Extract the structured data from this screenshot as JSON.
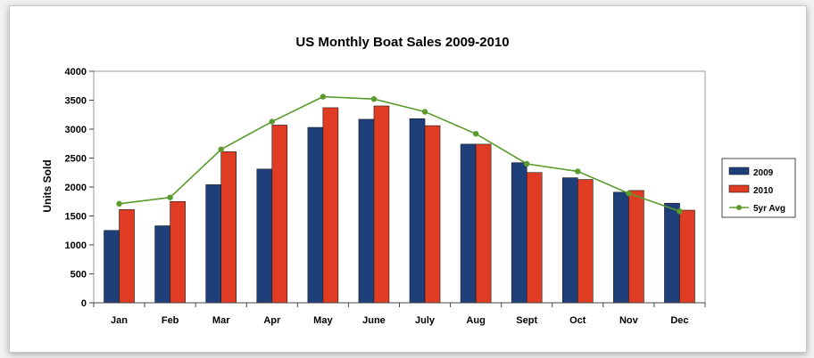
{
  "chart_data": {
    "type": "bar",
    "title": "US Monthly Boat Sales 2009-2010",
    "xlabel": "",
    "ylabel": "Units Sold",
    "ylim": [
      0,
      4000
    ],
    "yticks": [
      0,
      500,
      1000,
      1500,
      2000,
      2500,
      3000,
      3500,
      4000
    ],
    "categories": [
      "Jan",
      "Feb",
      "Mar",
      "Apr",
      "May",
      "June",
      "July",
      "Aug",
      "Sept",
      "Oct",
      "Nov",
      "Dec"
    ],
    "series": [
      {
        "name": "2009",
        "kind": "bar",
        "color": "#1f3f7a",
        "values": [
          1250,
          1330,
          2040,
          2310,
          3030,
          3170,
          3180,
          2740,
          2420,
          2160,
          1910,
          1720
        ]
      },
      {
        "name": "2010",
        "kind": "bar",
        "color": "#e03c23",
        "values": [
          1610,
          1750,
          2610,
          3070,
          3370,
          3400,
          3060,
          2740,
          2250,
          2130,
          1940,
          1600
        ]
      },
      {
        "name": "5yr Avg",
        "kind": "line",
        "color": "#5b9a2d",
        "values": [
          1710,
          1820,
          2650,
          3130,
          3560,
          3520,
          3300,
          2920,
          2400,
          2270,
          1890,
          1580
        ]
      }
    ],
    "grid": false,
    "legend": "right"
  }
}
